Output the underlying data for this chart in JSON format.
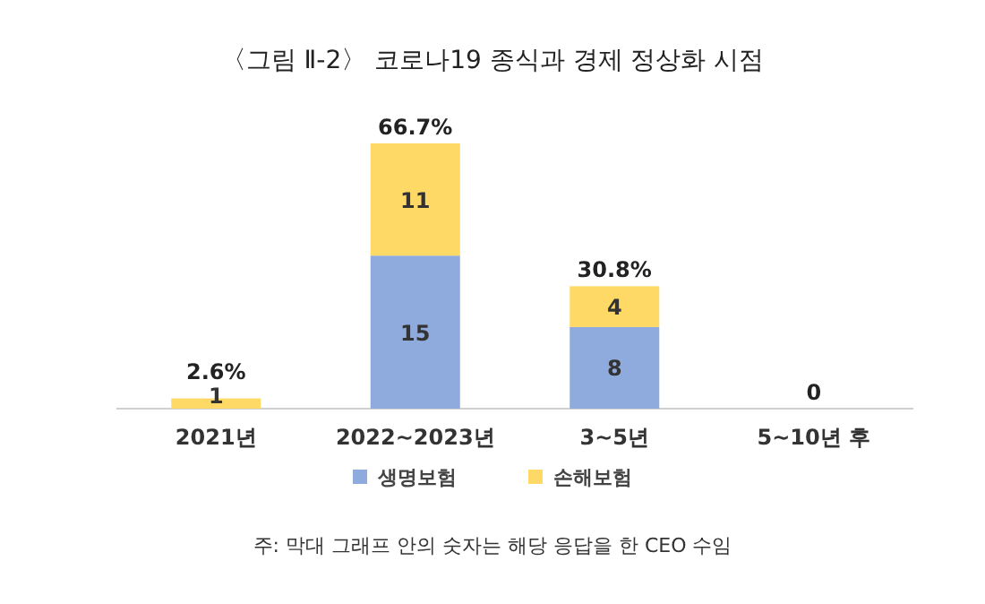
{
  "chart_data": {
    "type": "bar",
    "stacked": true,
    "title": "〈그림 Ⅱ-2〉 코로나19 종식과 경제 정상화 시점",
    "categories": [
      "2021년",
      "2022~2023년",
      "3~5년",
      "5~10년 후"
    ],
    "series": [
      {
        "name": "생명보험",
        "color": "#8faadc",
        "values": [
          0,
          15,
          8,
          0
        ],
        "value_labels": [
          null,
          "15",
          "8",
          null
        ]
      },
      {
        "name": "손해보험",
        "color": "#ffd966",
        "values": [
          1,
          11,
          4,
          0
        ],
        "value_labels": [
          "1",
          "11",
          "4",
          null
        ]
      }
    ],
    "legend": "bottom",
    "annotations": [
      {
        "text": "2.6%",
        "x": "2021년",
        "y": 1
      },
      {
        "text": "66.7%",
        "x": "2022~2023년",
        "y": 26
      },
      {
        "text": "30.8%",
        "x": "3~5년",
        "y": 12
      },
      {
        "text": "0",
        "x": "5~10년 후",
        "y": 0
      },
      "주: 막대 그래프 안의 숫자는 해당 응답을 한 CEO 수임"
    ]
  }
}
